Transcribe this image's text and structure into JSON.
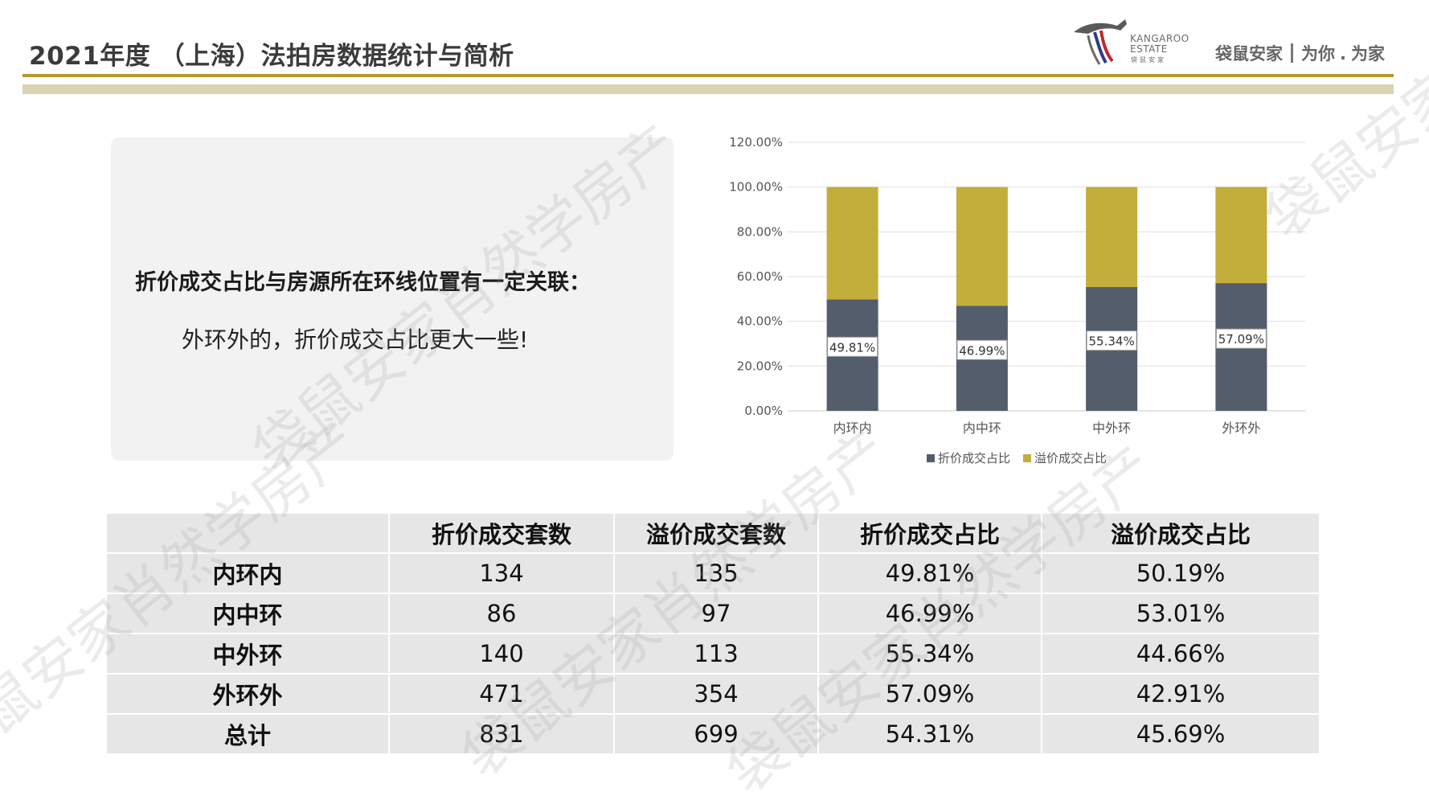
{
  "header": {
    "title": "2021年度 （上海）法拍房数据统计与简析",
    "logo_text_line1": "KANGAROO",
    "logo_text_line2": "ESTATE",
    "logo_cn_small": "袋鼠安家",
    "brand_name": "袋鼠安家",
    "slogan_part1": "为你",
    "slogan_dot": ".",
    "slogan_part2": "为家"
  },
  "watermark": {
    "text": "袋鼠安家肖然学房产"
  },
  "note": {
    "heading": "折价成交占比与房源所在环线位置有一定关联：",
    "body": "外环外的，折价成交占比更大一些!"
  },
  "chart_data": {
    "type": "bar",
    "stacked": true,
    "categories": [
      "内环内",
      "内中环",
      "中外环",
      "外环外"
    ],
    "series": [
      {
        "name": "折价成交占比",
        "values": [
          49.81,
          46.99,
          55.34,
          57.09
        ],
        "color": "#545d6b"
      },
      {
        "name": "溢价成交占比",
        "values": [
          50.19,
          53.01,
          44.66,
          42.91
        ],
        "color": "#c2ae3a"
      }
    ],
    "data_labels": [
      "49.81%",
      "46.99%",
      "55.34%",
      "57.09%"
    ],
    "y_ticks": [
      "0.00%",
      "20.00%",
      "40.00%",
      "60.00%",
      "80.00%",
      "100.00%",
      "120.00%"
    ],
    "ylim": [
      0,
      120
    ],
    "grid": true,
    "legend_position": "bottom"
  },
  "table": {
    "headers": [
      "",
      "折价成交套数",
      "溢价成交套数",
      "折价成交占比",
      "溢价成交占比"
    ],
    "rows": [
      [
        "内环内",
        "134",
        "135",
        "49.81%",
        "50.19%"
      ],
      [
        "内中环",
        "86",
        "97",
        "46.99%",
        "53.01%"
      ],
      [
        "中外环",
        "140",
        "113",
        "55.34%",
        "44.66%"
      ],
      [
        "外环外",
        "471",
        "354",
        "57.09%",
        "42.91%"
      ],
      [
        "总计",
        "831",
        "699",
        "54.31%",
        "45.69%"
      ]
    ]
  }
}
